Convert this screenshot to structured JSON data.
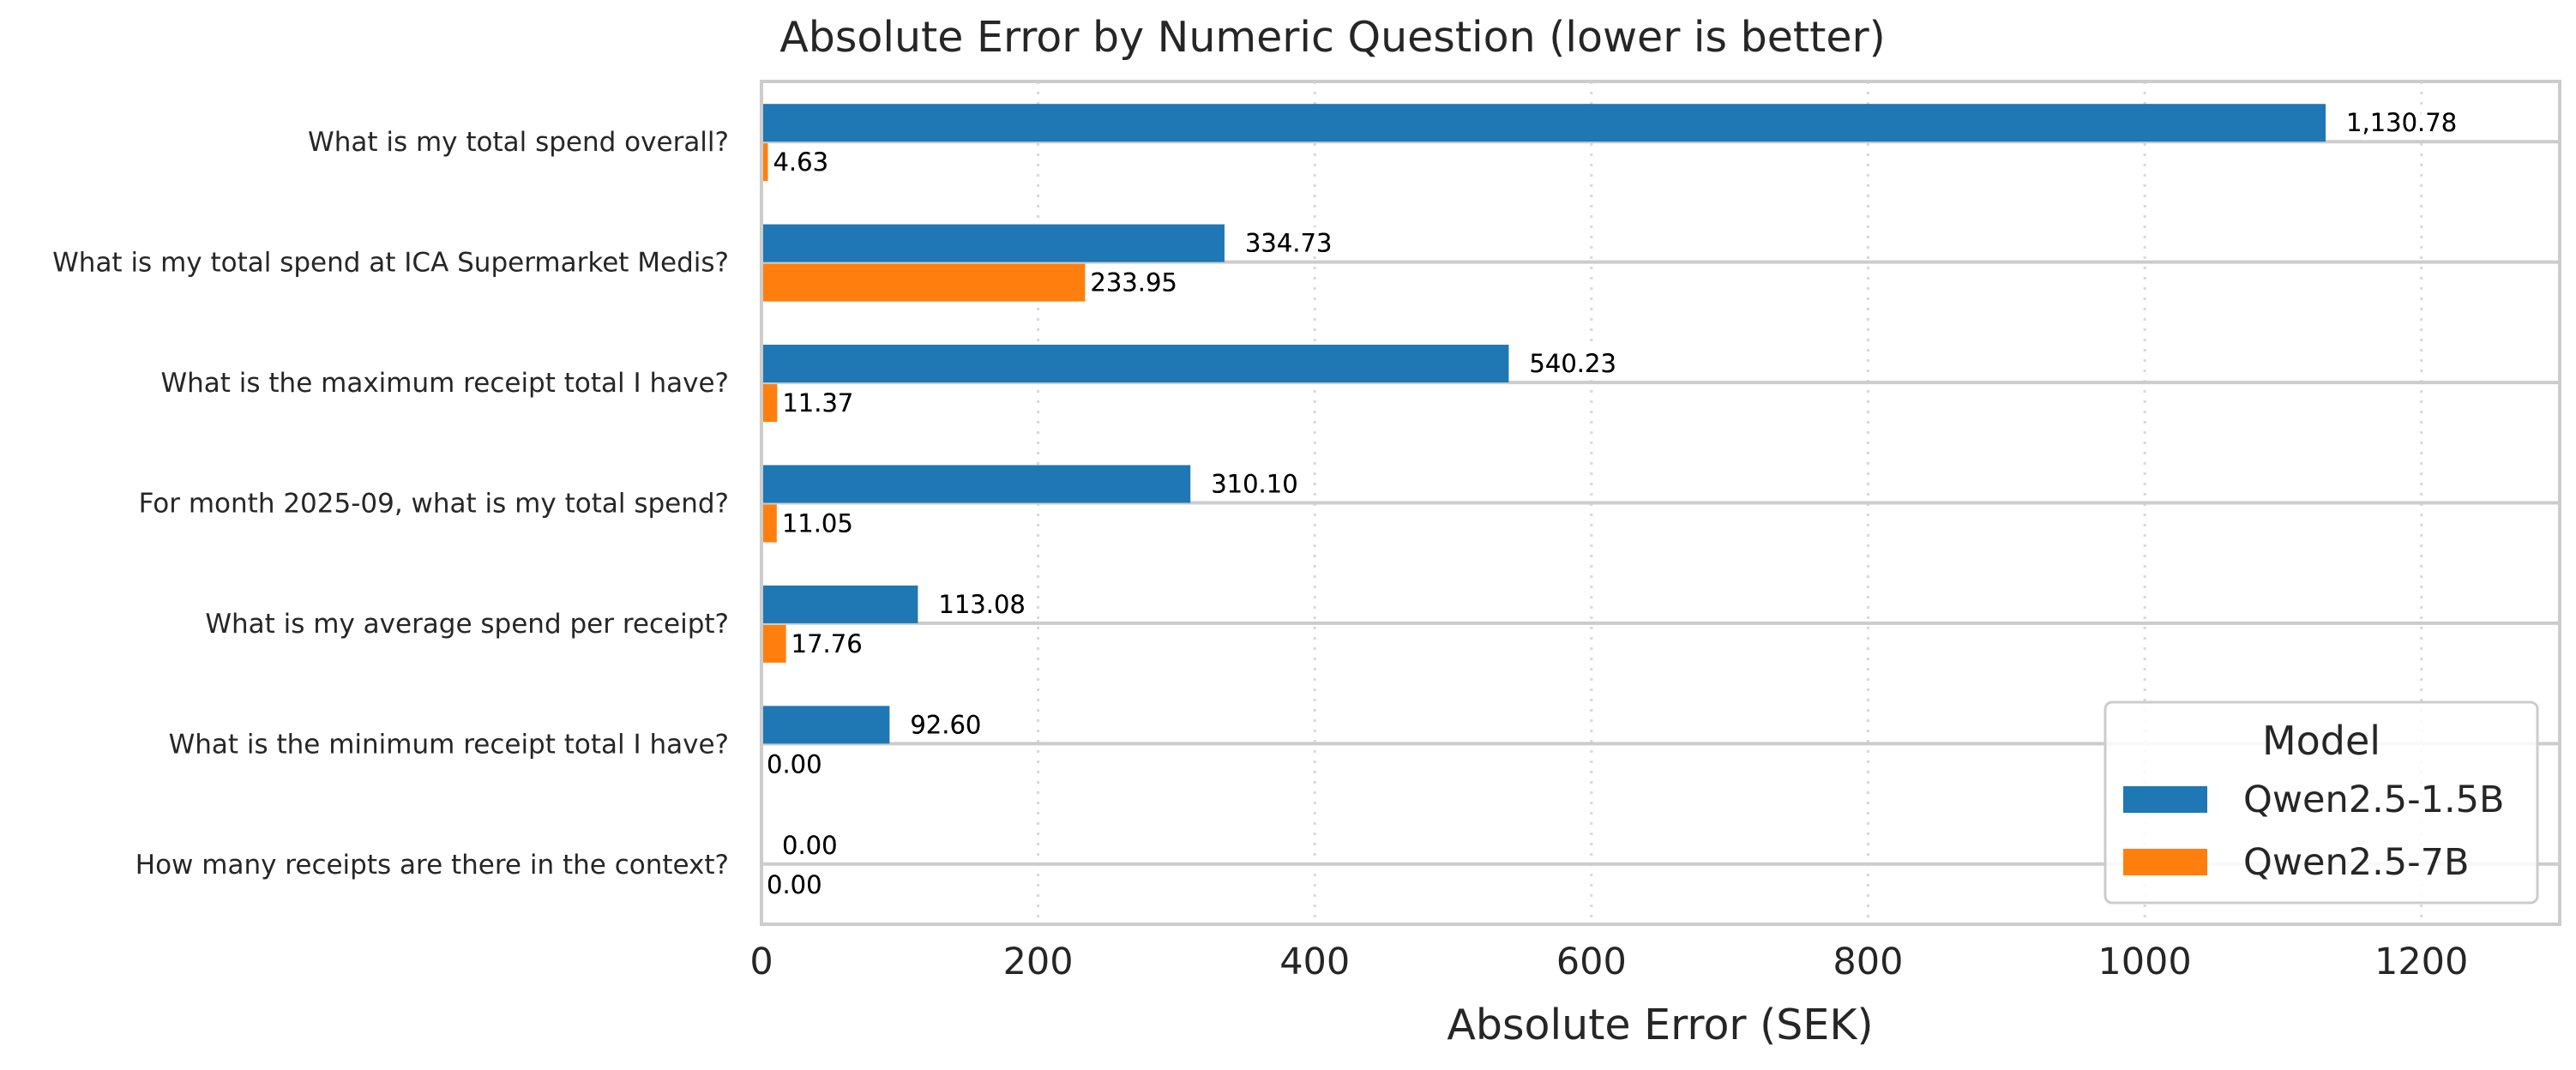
{
  "chart_data": {
    "type": "bar",
    "orientation": "horizontal",
    "title": "Absolute Error by Numeric Question (lower is better)",
    "xlabel": "Absolute Error (SEK)",
    "ylabel": "",
    "xlim": [
      0,
      1300
    ],
    "xticks": [
      0,
      200,
      400,
      600,
      800,
      1000,
      1200
    ],
    "grid": "x-dotted",
    "categories": [
      "What is my total spend overall?",
      "What is my total spend at ICA Supermarket Medis?",
      "What is the maximum receipt total I have?",
      "For month 2025-09, what is my total spend?",
      "What is my average spend per receipt?",
      "What is the minimum receipt total I have?",
      "How many receipts are there in the context?"
    ],
    "series": [
      {
        "name": "Qwen2.5-1.5B",
        "color": "#1f77b4",
        "values": [
          1130.78,
          334.73,
          540.23,
          310.1,
          113.08,
          92.6,
          0.0
        ],
        "labels": [
          "1,130.78",
          "334.73",
          "540.23",
          "310.10",
          "113.08",
          "92.60",
          "0.00"
        ]
      },
      {
        "name": "Qwen2.5-7B",
        "color": "#ff7f0e",
        "values": [
          4.63,
          233.95,
          11.37,
          11.05,
          17.76,
          0.0,
          0.0
        ],
        "labels": [
          "4.63",
          "233.95",
          "11.37",
          "11.05",
          "17.76",
          "0.00",
          "0.00"
        ]
      }
    ],
    "legend": {
      "title": "Model",
      "position": "lower-right"
    }
  }
}
